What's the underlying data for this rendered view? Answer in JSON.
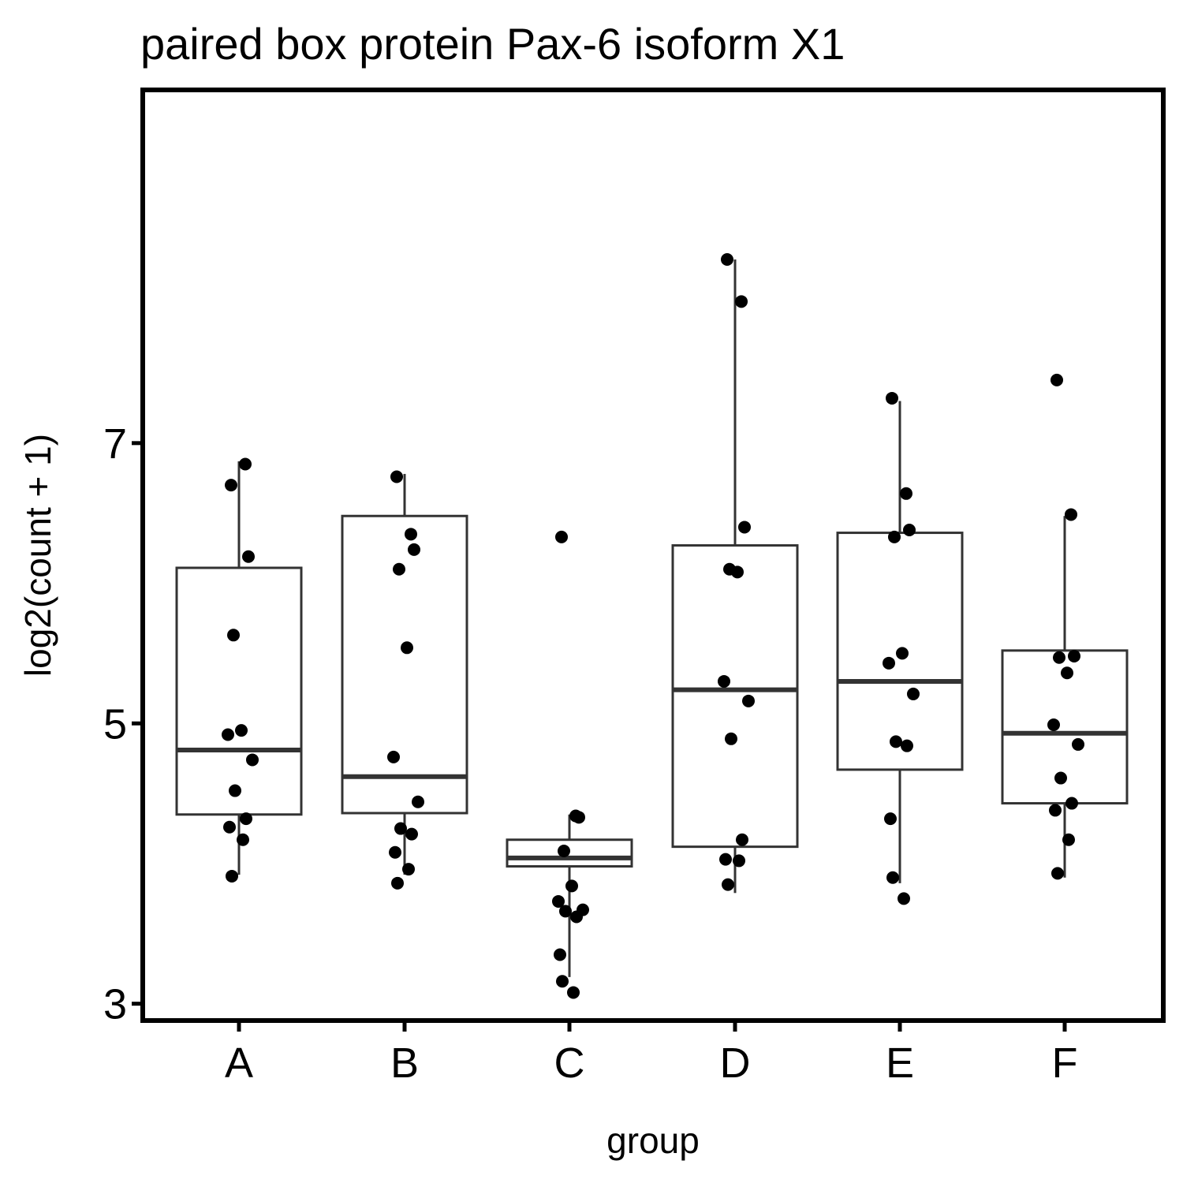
{
  "chart_data": {
    "type": "box",
    "title": "paired box protein Pax-6 isoform X1",
    "xlabel": "group",
    "ylabel": "log2(count + 1)",
    "ylim": [
      2.88,
      9.52
    ],
    "yticks": [
      "3",
      "5",
      "7"
    ],
    "categories": [
      "A",
      "B",
      "C",
      "D",
      "E",
      "F"
    ],
    "boxes": [
      {
        "group": "A",
        "whisker_low": 3.92,
        "q1": 4.35,
        "median": 4.81,
        "q3": 6.11,
        "whisker_high": 6.87
      },
      {
        "group": "B",
        "whisker_low": 3.92,
        "q1": 4.36,
        "median": 4.62,
        "q3": 6.48,
        "whisker_high": 6.78
      },
      {
        "group": "C",
        "whisker_low": 3.19,
        "q1": 3.98,
        "median": 4.04,
        "q3": 4.17,
        "whisker_high": 4.35
      },
      {
        "group": "D",
        "whisker_low": 3.79,
        "q1": 4.12,
        "median": 5.24,
        "q3": 6.27,
        "whisker_high": 8.31
      },
      {
        "group": "E",
        "whisker_low": 3.86,
        "q1": 4.67,
        "median": 5.3,
        "q3": 6.36,
        "whisker_high": 7.3
      },
      {
        "group": "F",
        "whisker_low": 3.9,
        "q1": 4.43,
        "median": 4.93,
        "q3": 5.52,
        "whisker_high": 6.48
      }
    ],
    "points": [
      {
        "group": "A",
        "values": [
          6.7,
          6.85,
          6.19,
          5.63,
          4.95,
          4.92,
          4.74,
          4.52,
          4.32,
          4.26,
          4.17,
          3.91
        ]
      },
      {
        "group": "B",
        "values": [
          6.76,
          6.35,
          6.24,
          6.1,
          5.54,
          4.76,
          4.44,
          4.25,
          4.21,
          4.08,
          3.96,
          3.86
        ]
      },
      {
        "group": "C",
        "values": [
          6.33,
          4.34,
          4.33,
          4.09,
          3.84,
          3.73,
          3.67,
          3.66,
          3.62,
          3.35,
          3.08,
          3.16
        ]
      },
      {
        "group": "D",
        "values": [
          8.31,
          8.01,
          6.4,
          6.1,
          6.08,
          5.3,
          5.16,
          4.89,
          4.17,
          4.03,
          4.02,
          3.85
        ]
      },
      {
        "group": "E",
        "values": [
          7.32,
          6.64,
          6.38,
          6.33,
          5.5,
          5.43,
          5.21,
          4.87,
          4.84,
          4.32,
          3.75,
          3.9
        ]
      },
      {
        "group": "F",
        "values": [
          7.45,
          6.49,
          5.48,
          5.47,
          5.36,
          4.99,
          4.85,
          4.61,
          4.43,
          4.38,
          4.17,
          3.93
        ]
      }
    ],
    "grid": false,
    "legend": "none",
    "colors": {
      "box": "#333333",
      "point": "#000000",
      "axis": "#000000"
    }
  }
}
